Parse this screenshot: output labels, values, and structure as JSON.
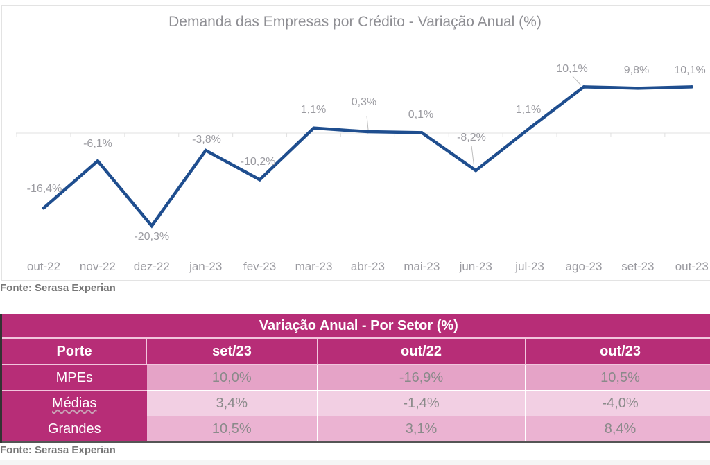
{
  "chart_data": {
    "type": "line",
    "title": "Demanda das Empresas por Crédito - Variação Anual (%)",
    "xlabel": "",
    "ylabel": "",
    "categories": [
      "out-22",
      "nov-22",
      "dez-22",
      "jan-23",
      "fev-23",
      "mar-23",
      "abr-23",
      "mai-23",
      "jun-23",
      "jul-23",
      "ago-23",
      "set-23",
      "out-23"
    ],
    "series": [
      {
        "name": "Demanda das Empresas por Crédito",
        "color": "#1f4e8f",
        "values": [
          -16.4,
          -6.1,
          -20.3,
          -3.8,
          -10.2,
          1.1,
          0.3,
          0.1,
          -8.2,
          1.1,
          10.1,
          9.8,
          10.1
        ],
        "labels": [
          "-16,4%",
          "-6,1%",
          "-20,3%",
          "-3,8%",
          "-10,2%",
          "1,1%",
          "0,3%",
          "0,1%",
          "-8,2%",
          "1,1%",
          "10,1%",
          "9,8%",
          "10,1%"
        ]
      }
    ],
    "ylim": [
      -23,
      14
    ],
    "grid": false,
    "legend": "none",
    "source": "Fonte: Serasa Experian"
  },
  "table": {
    "title": "Variação Anual - Por Setor (%)",
    "columns": [
      "Porte",
      "set/23",
      "out/22",
      "out/23"
    ],
    "rows": [
      {
        "label": "MPEs",
        "values": [
          "10,0%",
          "-16,9%",
          "10,5%"
        ]
      },
      {
        "label": "Médias",
        "values": [
          "3,4%",
          "-1,4%",
          "-4,0%"
        ]
      },
      {
        "label": "Grandes",
        "values": [
          "10,5%",
          "3,1%",
          "8,4%"
        ]
      }
    ],
    "source": "Fonte: Serasa Experian",
    "colors": {
      "header": "#b72d77",
      "row1": "#e5a3c7",
      "row2": "#f2cfe3",
      "row3": "#ebb3d2"
    }
  }
}
